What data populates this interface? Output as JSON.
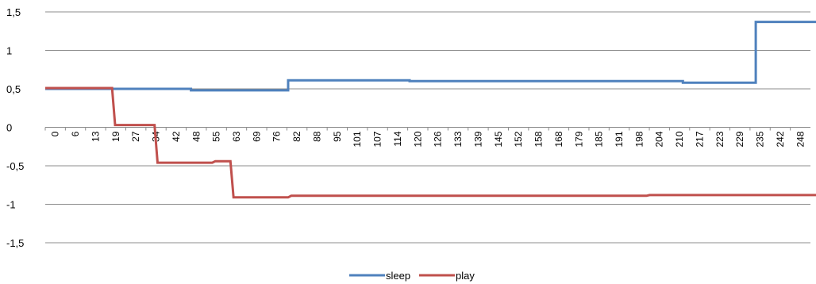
{
  "chart_data": {
    "type": "line",
    "title": "",
    "xlabel": "",
    "ylabel": "",
    "ylim": [
      -1.5,
      1.5
    ],
    "yticks": [
      1.5,
      1,
      0.5,
      0,
      -0.5,
      -1,
      -1.5
    ],
    "ytick_labels": [
      "1,5",
      "1",
      "0,5",
      "0",
      "-0,5",
      "-1",
      "-1,5"
    ],
    "x_range": [
      0,
      252
    ],
    "xtick_labels": [
      "0",
      "6",
      "13",
      "19",
      "27",
      "34",
      "42",
      "48",
      "55",
      "63",
      "69",
      "76",
      "82",
      "88",
      "95",
      "101",
      "107",
      "114",
      "120",
      "126",
      "133",
      "139",
      "145",
      "152",
      "158",
      "168",
      "179",
      "185",
      "191",
      "198",
      "204",
      "210",
      "217",
      "223",
      "229",
      "235",
      "242",
      "248"
    ],
    "grid": "horizontal",
    "legend_position": "bottom",
    "series": [
      {
        "name": "sleep",
        "color": "#4F81BD",
        "points": [
          [
            0,
            0.5
          ],
          [
            20,
            0.5
          ],
          [
            33,
            0.5
          ],
          [
            48,
            0.5
          ],
          [
            48,
            0.48
          ],
          [
            80,
            0.48
          ],
          [
            80,
            0.61
          ],
          [
            120,
            0.61
          ],
          [
            120,
            0.6
          ],
          [
            210,
            0.6
          ],
          [
            210,
            0.58
          ],
          [
            234,
            0.58
          ],
          [
            234,
            1.37
          ],
          [
            258,
            1.37
          ]
        ]
      },
      {
        "name": "play",
        "color": "#C0504D",
        "points": [
          [
            0,
            0.51
          ],
          [
            22,
            0.51
          ],
          [
            23,
            0.03
          ],
          [
            36,
            0.03
          ],
          [
            37,
            -0.46
          ],
          [
            55,
            -0.46
          ],
          [
            56,
            -0.44
          ],
          [
            61,
            -0.44
          ],
          [
            62,
            -0.91
          ],
          [
            80,
            -0.91
          ],
          [
            81,
            -0.89
          ],
          [
            198,
            -0.89
          ],
          [
            199,
            -0.88
          ],
          [
            258,
            -0.88
          ]
        ]
      }
    ]
  }
}
